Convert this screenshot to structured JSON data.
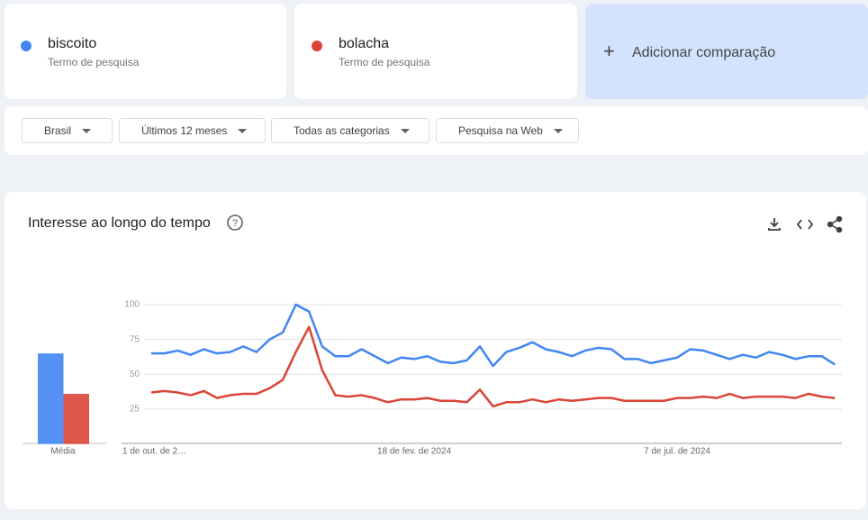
{
  "cards": [
    {
      "subtitle": "Termo de pesquisa"
    },
    {
      "subtitle": "Termo de pesquisa"
    }
  ],
  "add_comparison": "Adicionar comparação",
  "filters": [
    "Brasil",
    "Últimos 12 meses",
    "Todas as categorias",
    "Pesquisa na Web"
  ],
  "chart_data": {
    "type": "line",
    "title": "Interesse ao longo do tempo",
    "average_label": "Média",
    "categories": [
      "1 de out. de 2…",
      null,
      null,
      null,
      null,
      null,
      null,
      null,
      null,
      null,
      null,
      null,
      null,
      null,
      null,
      null,
      null,
      null,
      null,
      null,
      "18 de fev. de 2024",
      null,
      null,
      null,
      null,
      null,
      null,
      null,
      null,
      null,
      null,
      null,
      null,
      null,
      null,
      null,
      null,
      null,
      null,
      null,
      "7 de jul. de 2024",
      null,
      null,
      null,
      null,
      null,
      null,
      null,
      null,
      null,
      null,
      null,
      null
    ],
    "ylim": [
      0,
      100
    ],
    "yticks": [
      25,
      50,
      75,
      100
    ],
    "grid": true,
    "series": [
      {
        "name": "biscoito",
        "color": "#4285f4",
        "average": 65,
        "values": [
          65,
          65,
          67,
          64,
          68,
          65,
          66,
          70,
          66,
          75,
          80,
          100,
          95,
          70,
          63,
          63,
          68,
          63,
          58,
          62,
          61,
          63,
          59,
          58,
          60,
          70,
          56,
          66,
          69,
          73,
          68,
          66,
          63,
          67,
          69,
          68,
          61,
          61,
          58,
          60,
          62,
          68,
          67,
          64,
          61,
          64,
          62,
          66,
          64,
          61,
          63,
          63,
          57
        ]
      },
      {
        "name": "bolacha",
        "color": "#db4437",
        "average": 36,
        "values": [
          37,
          38,
          37,
          35,
          38,
          33,
          35,
          36,
          36,
          40,
          46,
          66,
          84,
          53,
          35,
          34,
          35,
          33,
          30,
          32,
          32,
          33,
          31,
          31,
          30,
          39,
          27,
          30,
          30,
          32,
          30,
          32,
          31,
          32,
          33,
          33,
          31,
          31,
          31,
          31,
          33,
          33,
          34,
          33,
          36,
          33,
          34,
          34,
          34,
          33,
          36,
          34,
          33
        ]
      }
    ]
  }
}
